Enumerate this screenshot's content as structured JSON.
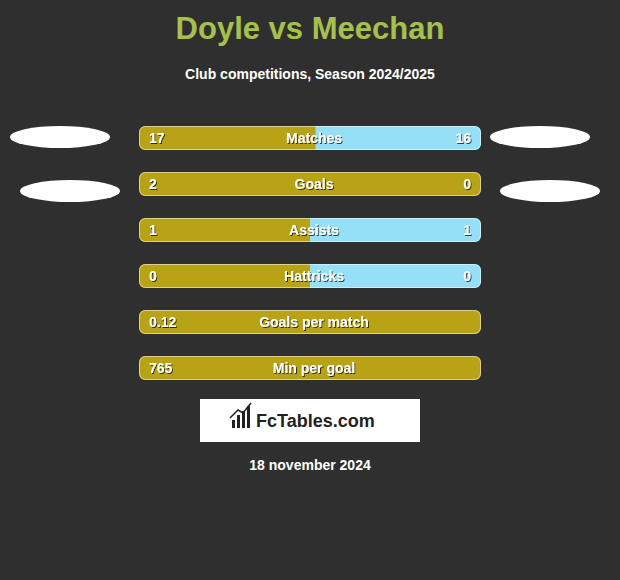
{
  "chart_data": {
    "type": "bar",
    "orientation": "horizontal",
    "stacked": true,
    "data_labels": true,
    "tick_labels": false,
    "title": "Doyle vs Meechan",
    "subtitle": "Club competitions, Season 2024/2025",
    "categories": [
      "Matches",
      "Goals",
      "Assists",
      "Hattricks",
      "Goals per match",
      "Min per goal"
    ],
    "series": [
      {
        "color": "#b8a216",
        "values": [
          17,
          2,
          1,
          0,
          0.12,
          765
        ]
      },
      {
        "color": "#95dff7",
        "values": [
          16,
          0,
          1,
          0,
          null,
          null
        ]
      }
    ],
    "source": "FcTables.com",
    "date": "18 november 2024"
  }
}
